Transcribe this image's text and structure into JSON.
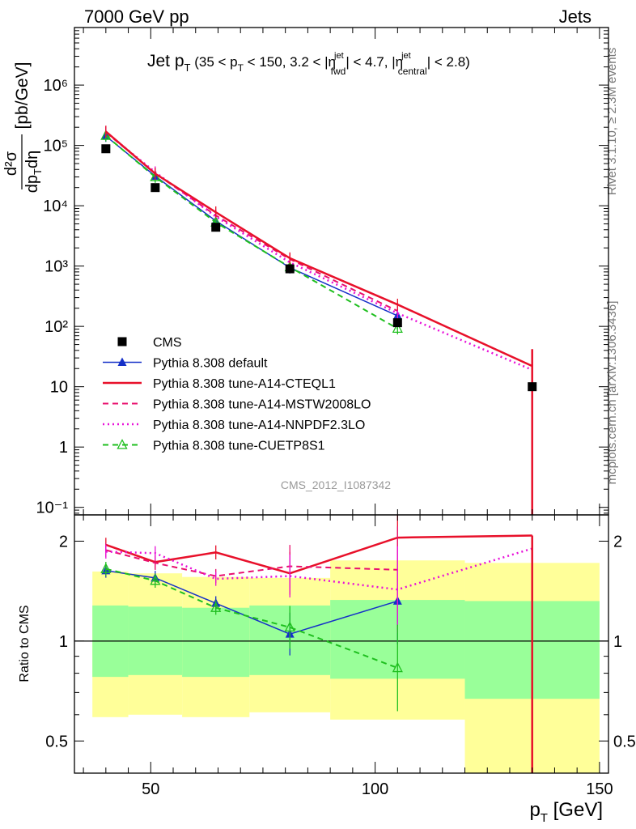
{
  "header": {
    "left": "7000 GeV pp",
    "right": "Jets"
  },
  "side_labels": {
    "rivet": "Rivet 3.1.10, ≥ 2.3M events",
    "mcplots": "mcplots.cern.ch [arXiv:1306.3436]"
  },
  "watermark": "CMS_2012_I1087342",
  "chart_data": [
    {
      "panel": "main",
      "type": "scatter",
      "title": "Jet pT (35 < pT < 150, 3.2 < ηfwd jet < 4.7, ηcentral jet < 2.8)",
      "title_parts": {
        "jet": "Jet p",
        "T": "T",
        "open": " (35 < p",
        "mid": " < 150, 3.2 < |η",
        "jet_sup": "jet",
        "fwd": "fwd",
        "mid2": "| < 4.7, |η",
        "central": "central",
        "close": "| < 2.8)"
      },
      "ylabel": "d²σ / dpT dη [pb/GeV]",
      "ylabel_parts": {
        "num": "d²σ",
        "den": "dp",
        "den_sub": "T",
        "den_end": "dη",
        "unit": "[pb/GeV]"
      },
      "xlabel": "",
      "y_scale": "log",
      "xlim": [
        33,
        152
      ],
      "ylim": [
        0.075,
        9000000
      ],
      "y_ticks": [
        {
          "v": 0.1,
          "label": "10⁻¹"
        },
        {
          "v": 1,
          "label": "1"
        },
        {
          "v": 10,
          "label": "10"
        },
        {
          "v": 100,
          "label": "10²"
        },
        {
          "v": 1000,
          "label": "10³"
        },
        {
          "v": 10000,
          "label": "10⁴"
        },
        {
          "v": 100000,
          "label": "10⁵"
        },
        {
          "v": 1000000,
          "label": "10⁶"
        }
      ],
      "series": [
        {
          "name": "CMS",
          "color": "#000000",
          "marker": "square",
          "line": "none",
          "x": [
            40,
            51,
            64.5,
            81,
            105,
            135
          ],
          "y": [
            88000,
            20000,
            4400,
            900,
            115,
            10
          ]
        },
        {
          "name": "Pythia 8.308 default",
          "color": "#1530c8",
          "marker": "triangle-filled",
          "line": "solid",
          "x": [
            40,
            51,
            64.5,
            81,
            105
          ],
          "y": [
            143000,
            31000,
            5600,
            940,
            150
          ]
        },
        {
          "name": "Pythia 8.308 tune-A14-CTEQL1",
          "color": "#e8102a",
          "marker": "none",
          "line": "solid-thick",
          "x": [
            40,
            51,
            64.5,
            81,
            105,
            135
          ],
          "y": [
            170000,
            34000,
            7800,
            1350,
            230,
            22
          ]
        },
        {
          "name": "Pythia 8.308 tune-A14-MSTW2008LO",
          "color": "#e8106e",
          "marker": "none",
          "line": "dashed",
          "x": [
            40,
            51,
            64.5,
            81,
            105
          ],
          "y": [
            165000,
            34500,
            6900,
            1300,
            180
          ]
        },
        {
          "name": "Pythia 8.308 tune-A14-NNPDF2.3LO",
          "color": "#e810d8",
          "marker": "none",
          "line": "dotted",
          "x": [
            40,
            51,
            64.5,
            81,
            105,
            135
          ],
          "y": [
            165000,
            36000,
            6600,
            1150,
            165,
            19
          ]
        },
        {
          "name": "Pythia 8.308 tune-CUETP8S1",
          "color": "#1fbf1f",
          "marker": "triangle-open",
          "line": "dashed",
          "x": [
            40,
            51,
            64.5,
            81,
            105
          ],
          "y": [
            145000,
            30000,
            5300,
            960,
            92
          ]
        }
      ]
    },
    {
      "panel": "ratio",
      "type": "line",
      "ylabel": "Ratio to CMS",
      "xlabel": "pT [GeV]",
      "xlabel_parts": {
        "p": "p",
        "T": "T",
        "unit": " [GeV]"
      },
      "y_scale": "log",
      "xlim": [
        33,
        152
      ],
      "ylim": [
        0.4,
        2.4
      ],
      "x_ticks": [
        50,
        100,
        150
      ],
      "y_ticks": [
        {
          "v": 0.5,
          "label": "0.5"
        },
        {
          "v": 1,
          "label": "1"
        },
        {
          "v": 2,
          "label": "2"
        }
      ],
      "bands": [
        {
          "x0": 37,
          "x1": 45,
          "stat": [
            0.78,
            1.28
          ],
          "total": [
            0.59,
            1.62
          ]
        },
        {
          "x0": 45,
          "x1": 57,
          "stat": [
            0.79,
            1.27
          ],
          "total": [
            0.6,
            1.6
          ]
        },
        {
          "x0": 57,
          "x1": 72,
          "stat": [
            0.78,
            1.26
          ],
          "total": [
            0.59,
            1.56
          ]
        },
        {
          "x0": 72,
          "x1": 90,
          "stat": [
            0.79,
            1.28
          ],
          "total": [
            0.61,
            1.55
          ]
        },
        {
          "x0": 90,
          "x1": 120,
          "stat": [
            0.77,
            1.33
          ],
          "total": [
            0.58,
            1.75
          ]
        },
        {
          "x0": 120,
          "x1": 150,
          "stat": [
            0.67,
            1.32
          ],
          "total": [
            0.4,
            1.72
          ]
        }
      ],
      "series": [
        {
          "name": "Pythia 8.308 default",
          "color": "#1530c8",
          "x": [
            40,
            51,
            64.5,
            81,
            105
          ],
          "y": [
            1.63,
            1.55,
            1.3,
            1.05,
            1.32
          ]
        },
        {
          "name": "Pythia 8.308 tune-A14-CTEQL1",
          "color": "#e8102a",
          "x": [
            40,
            51,
            64.5,
            81,
            105,
            135
          ],
          "y": [
            1.95,
            1.73,
            1.85,
            1.6,
            2.05,
            2.08
          ]
        },
        {
          "name": "Pythia 8.308 tune-A14-MSTW2008LO",
          "color": "#e8106e",
          "x": [
            40,
            51,
            64.5,
            81,
            105
          ],
          "y": [
            1.88,
            1.72,
            1.57,
            1.68,
            1.64
          ]
        },
        {
          "name": "Pythia 8.308 tune-A14-NNPDF2.3LO",
          "color": "#e810d8",
          "x": [
            40,
            51,
            64.5,
            81,
            105,
            135
          ],
          "y": [
            1.86,
            1.84,
            1.54,
            1.57,
            1.43,
            1.9
          ]
        },
        {
          "name": "Pythia 8.308 tune-CUETP8S1",
          "color": "#1fbf1f",
          "x": [
            40,
            51,
            64.5,
            81,
            105
          ],
          "y": [
            1.65,
            1.52,
            1.26,
            1.1,
            0.83
          ]
        }
      ]
    }
  ]
}
